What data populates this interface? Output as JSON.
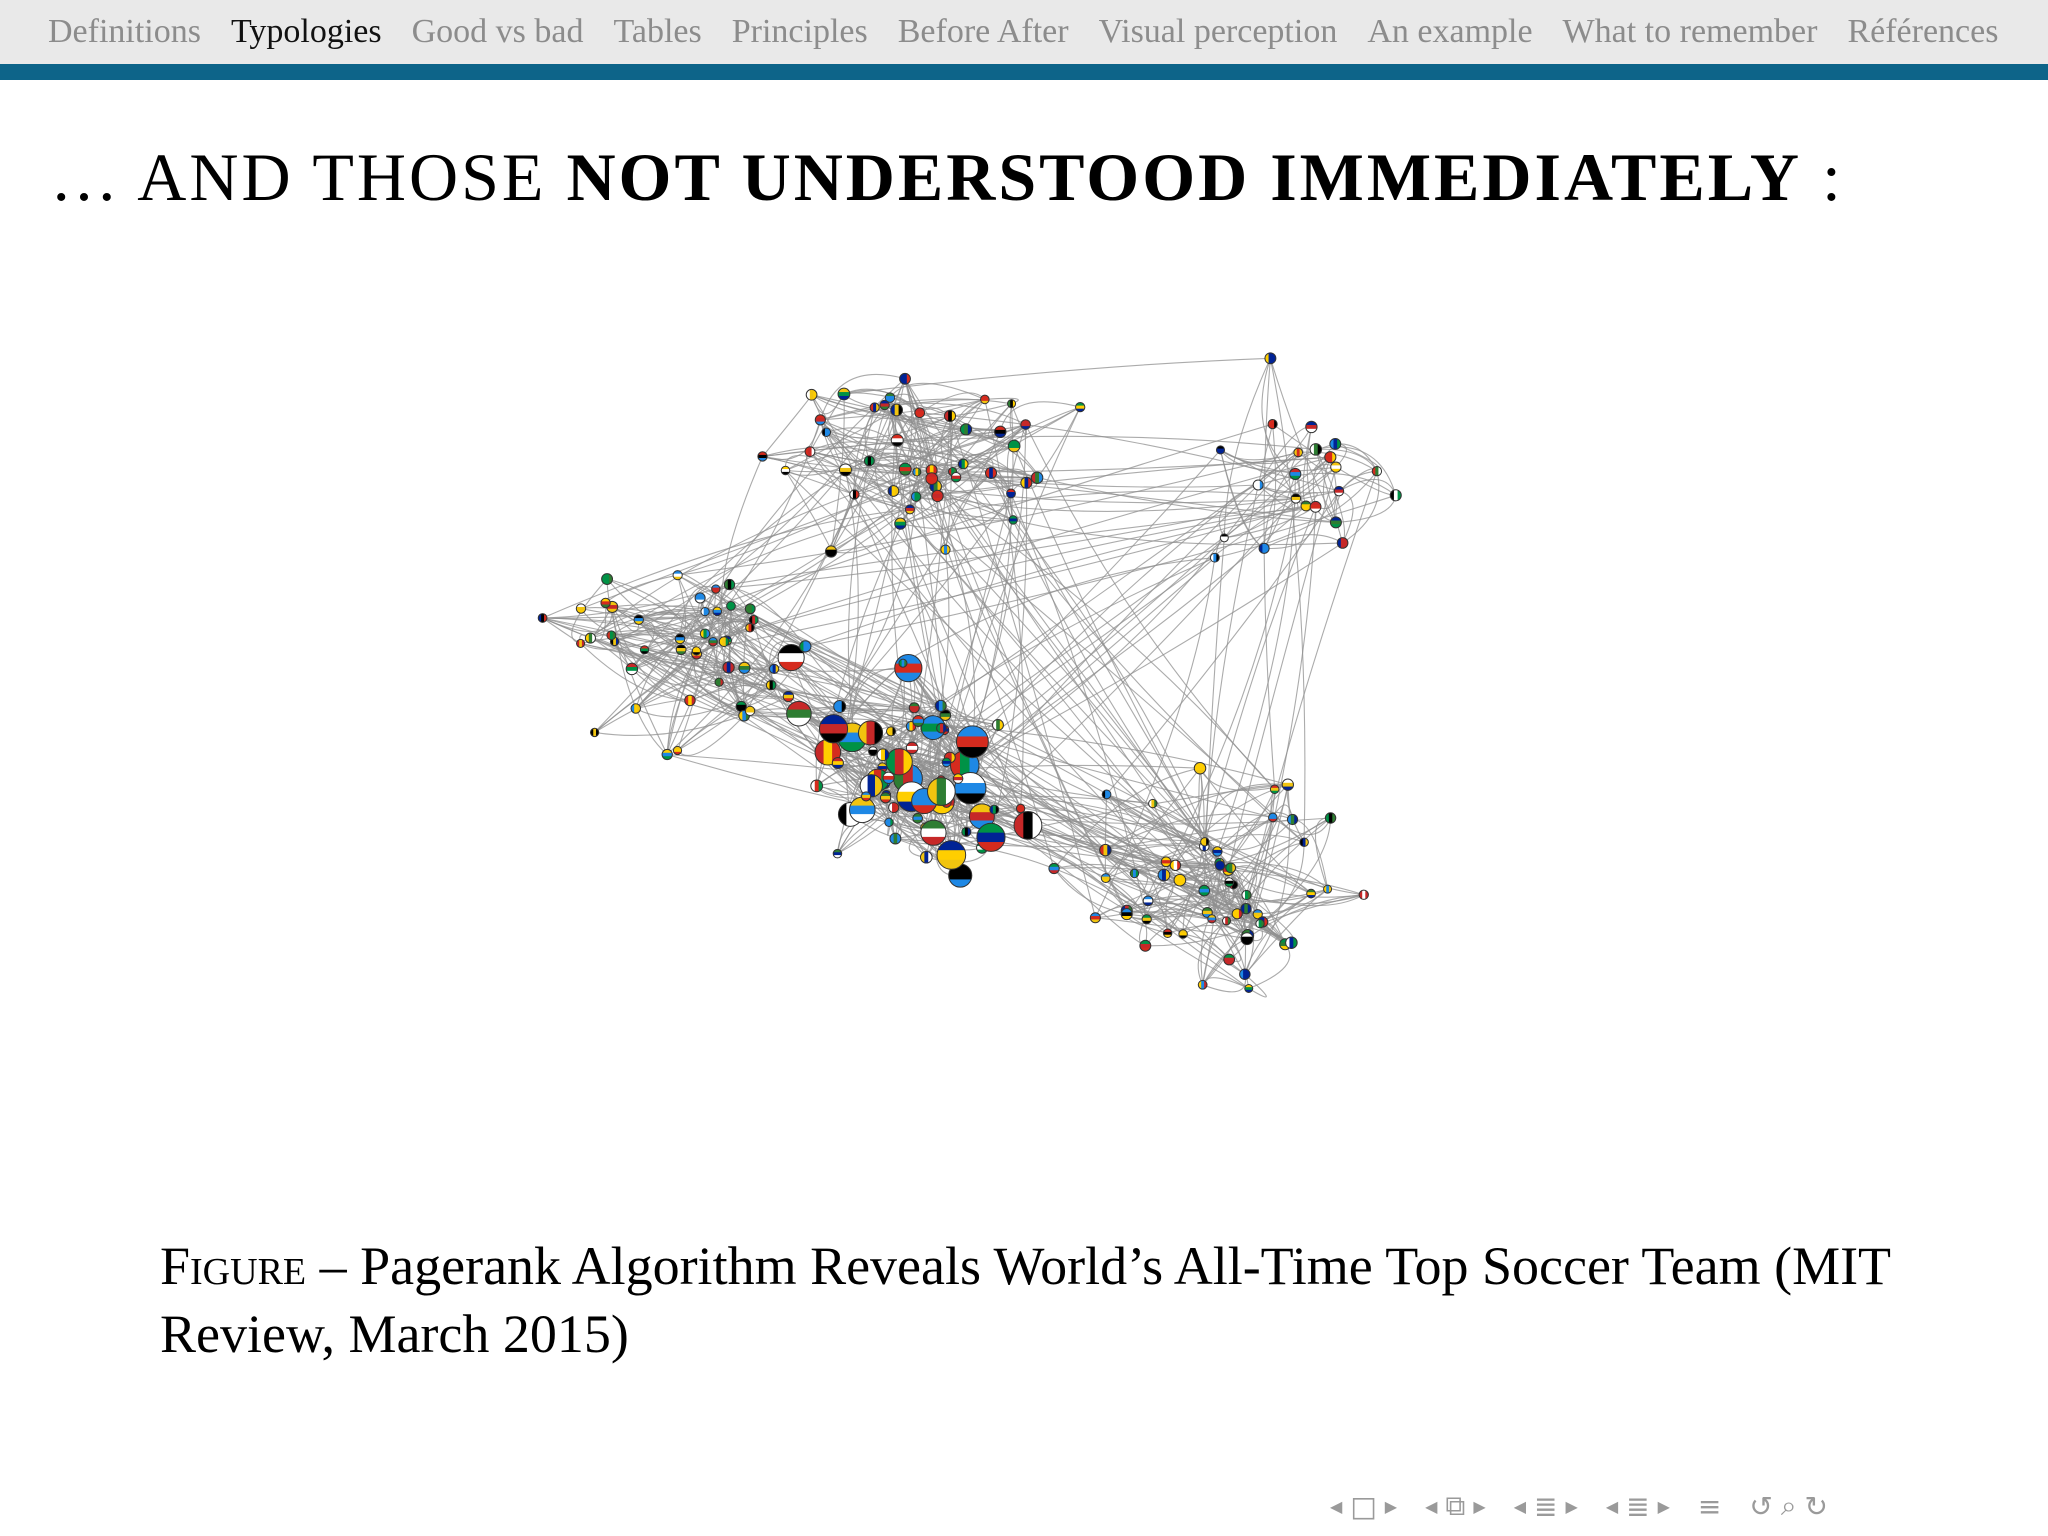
{
  "navbar": {
    "items": [
      {
        "label": "Definitions",
        "active": false
      },
      {
        "label": "Typologies",
        "active": true
      },
      {
        "label": "Good vs bad",
        "active": false
      },
      {
        "label": "Tables",
        "active": false
      },
      {
        "label": "Principles",
        "active": false
      },
      {
        "label": "Before After",
        "active": false
      },
      {
        "label": "Visual perception",
        "active": false
      },
      {
        "label": "An example",
        "active": false
      },
      {
        "label": "What to remember",
        "active": false
      },
      {
        "label": "Références",
        "active": false
      }
    ],
    "rule_color": "#0d6489"
  },
  "title": {
    "prefix": "… AND THOSE",
    "bold": "NOT UNDERSTOOD IMMEDIATELY",
    "suffix": " :"
  },
  "caption": {
    "prefix": "Figure",
    "text": "– Pagerank Algorithm Reveals World’s All-Time Top Soccer Team (MIT Review, March 2015)"
  },
  "figure": {
    "description_icon": "network-graph-of-national-flags",
    "flag_colors": [
      "#d52b1e",
      "#ffffff",
      "#009246",
      "#000000",
      "#ffce00",
      "#002395",
      "#f1c40f",
      "#1e88e5",
      "#c62828",
      "#2e7d32"
    ]
  },
  "beamer_nav": {
    "icons": [
      "nav-frame-prev-icon",
      "nav-frame-icon",
      "nav-frame-next-icon",
      "nav-subsection-prev-icon",
      "nav-subsection-icon",
      "nav-subsection-next-icon",
      "nav-section-prev-icon",
      "nav-section-icon",
      "nav-section-next-icon",
      "nav-doc-prev-icon",
      "nav-doc-icon",
      "nav-doc-next-icon",
      "nav-menu-icon",
      "nav-back-icon",
      "nav-search-icon",
      "nav-forward-icon"
    ]
  }
}
